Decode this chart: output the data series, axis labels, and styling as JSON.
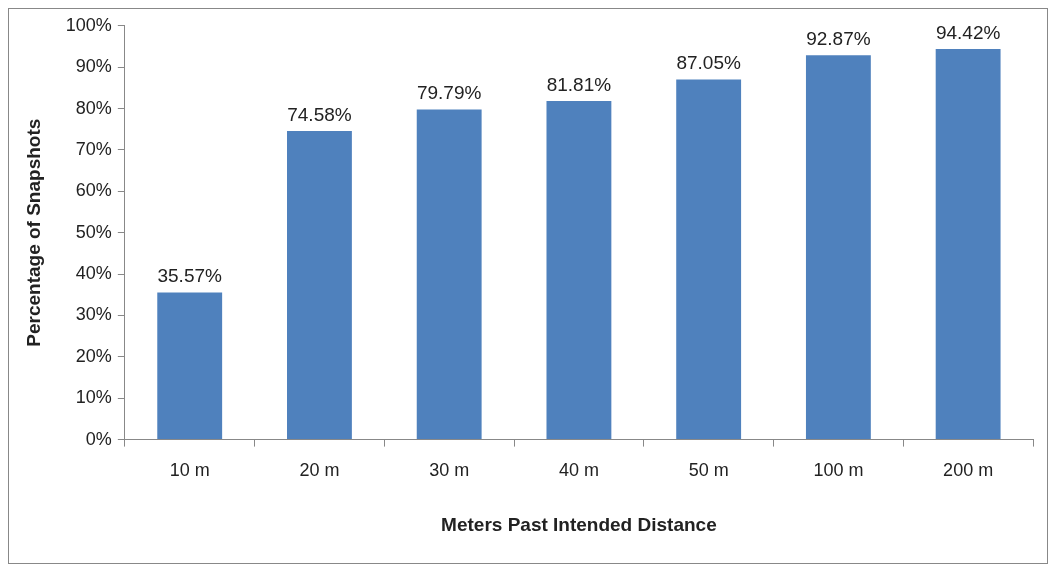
{
  "chart_data": {
    "type": "bar",
    "xlabel": "Meters Past Intended Distance",
    "ylabel": "Percentage of Snapshots",
    "categories": [
      "10 m",
      "20 m",
      "30 m",
      "40 m",
      "50 m",
      "100 m",
      "200 m"
    ],
    "values": [
      35.57,
      74.58,
      79.79,
      81.81,
      87.05,
      92.87,
      94.42
    ],
    "value_labels": [
      "35.57%",
      "74.58%",
      "79.79%",
      "81.81%",
      "87.05%",
      "92.87%",
      "94.42%"
    ],
    "color": "#4f81bd",
    "ylim": [
      0,
      100
    ],
    "yticks": [
      {
        "value": 0,
        "label": "0%"
      },
      {
        "value": 10,
        "label": "10%"
      },
      {
        "value": 20,
        "label": "20%"
      },
      {
        "value": 30,
        "label": "30%"
      },
      {
        "value": 40,
        "label": "40%"
      },
      {
        "value": 50,
        "label": "50%"
      },
      {
        "value": 60,
        "label": "60%"
      },
      {
        "value": 70,
        "label": "70%"
      },
      {
        "value": 80,
        "label": "80%"
      },
      {
        "value": 90,
        "label": "90%"
      },
      {
        "value": 100,
        "label": "100%"
      }
    ],
    "grid": false,
    "legend": false
  }
}
